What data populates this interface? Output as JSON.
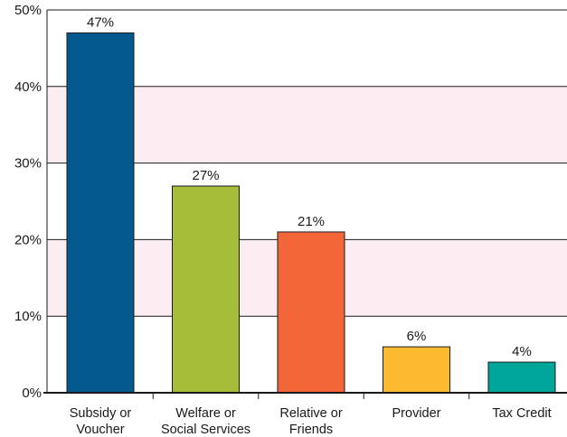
{
  "chart_data": {
    "type": "bar",
    "categories": [
      [
        "Subsidy or",
        "Voucher"
      ],
      [
        "Welfare or",
        "Social Services"
      ],
      [
        "Relative or",
        "Friends"
      ],
      [
        "Provider"
      ],
      [
        "Tax Credit"
      ]
    ],
    "values": [
      47,
      27,
      21,
      6,
      4
    ],
    "data_labels": [
      "47%",
      "27%",
      "21%",
      "6%",
      "4%"
    ],
    "bar_colors": [
      "#03598e",
      "#a6bd3a",
      "#f26637",
      "#fdb930",
      "#00a59a"
    ],
    "band_color": "#fcedf2",
    "ylim": [
      0,
      50
    ],
    "yticks": [
      0,
      10,
      20,
      30,
      40,
      50
    ],
    "ytick_labels": [
      "0%",
      "10%",
      "20%",
      "30%",
      "40%",
      "50%"
    ],
    "grid": true,
    "legend": "none"
  }
}
